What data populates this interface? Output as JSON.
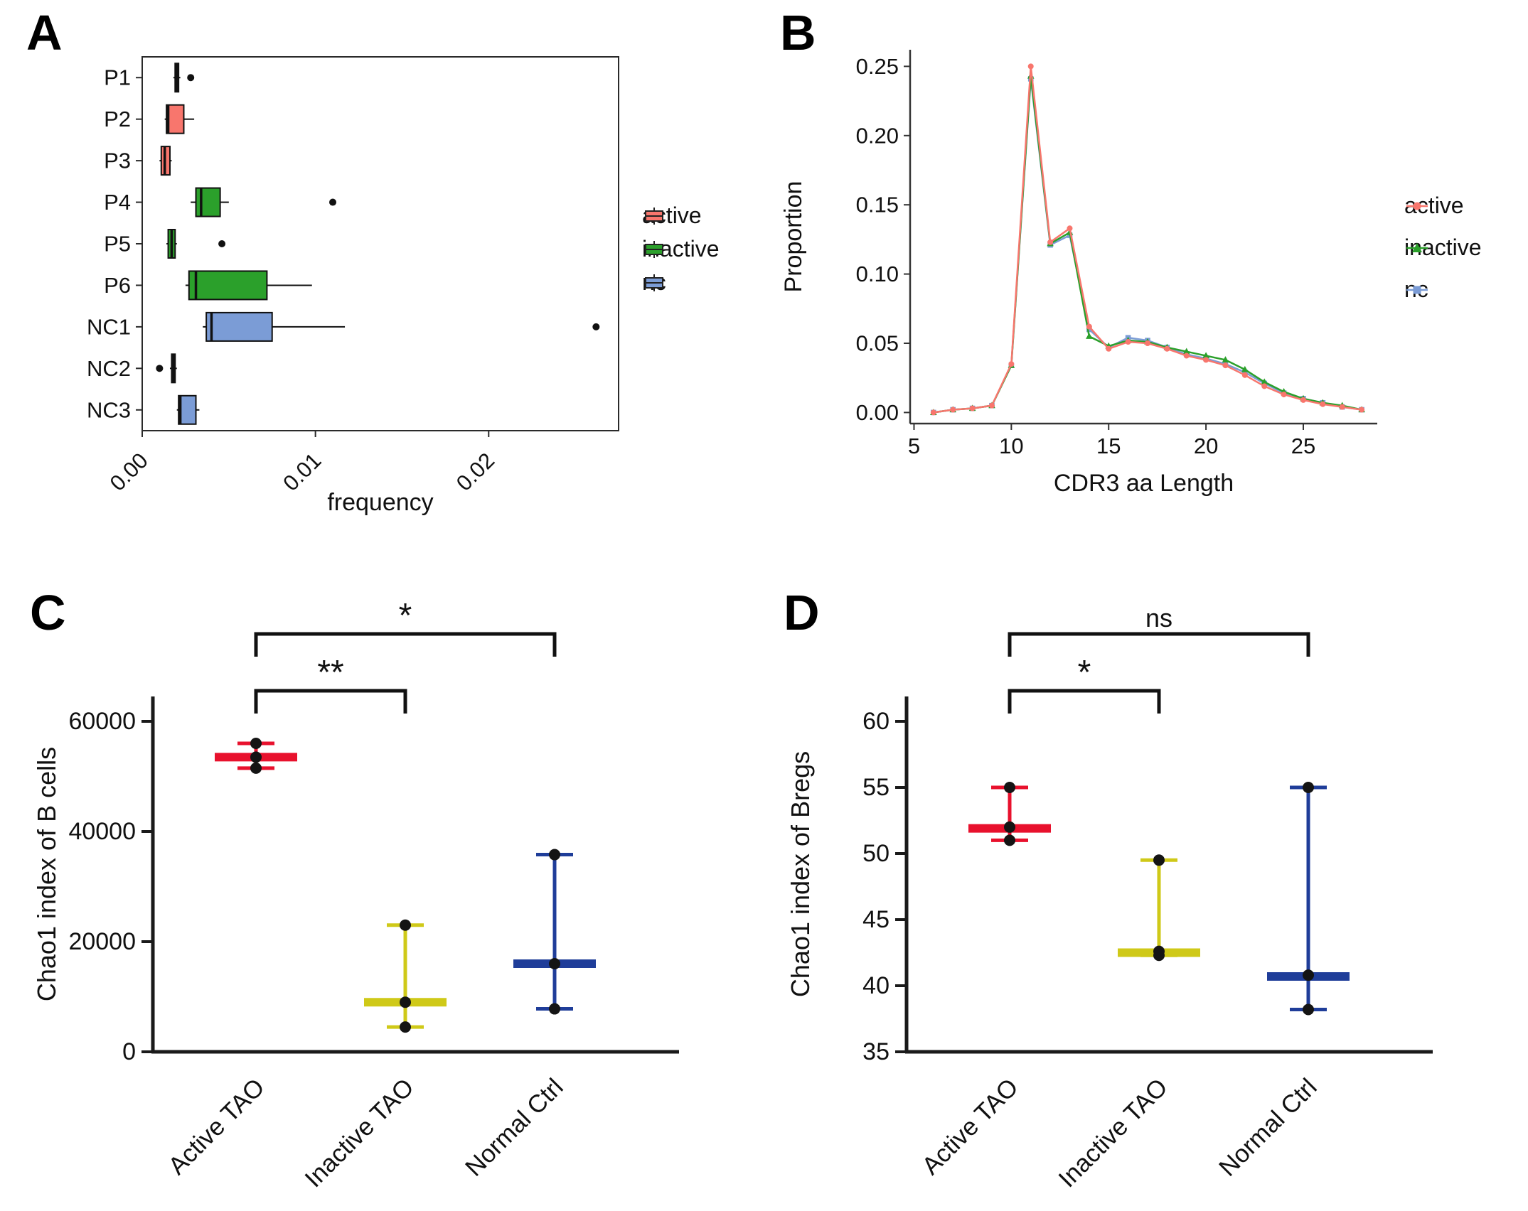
{
  "panels": {
    "A": {
      "letter": "A"
    },
    "B": {
      "letter": "B"
    },
    "C": {
      "letter": "C"
    },
    "D": {
      "letter": "D"
    }
  },
  "colors": {
    "active": "#F8766D",
    "inactive": "#2BA02B",
    "nc": "#7B9CD6",
    "tao_red": "#E8112D",
    "tao_yellow": "#CFC918",
    "ctrl_blue": "#1F3D99",
    "point": "#141414",
    "axis": "#1a1a1a"
  },
  "chart_data": [
    {
      "id": "A",
      "type": "boxplot-horizontal",
      "xlabel": "frequency",
      "xticks": [
        0,
        0.01,
        0.02
      ],
      "xtick_labels": [
        "0.00",
        "0.01",
        "0.02"
      ],
      "xlim": [
        0,
        0.0275
      ],
      "categories": [
        "P1",
        "P2",
        "P3",
        "P4",
        "P5",
        "P6",
        "NC1",
        "NC2",
        "NC3"
      ],
      "groups": [
        "active",
        "active",
        "active",
        "inactive",
        "inactive",
        "inactive",
        "nc",
        "nc",
        "nc"
      ],
      "boxes": [
        {
          "min": 0.0018,
          "q1": 0.0019,
          "median": 0.002,
          "q3": 0.0021,
          "max": 0.0022,
          "outliers": [
            0.0028
          ]
        },
        {
          "min": 0.0013,
          "q1": 0.0014,
          "median": 0.0015,
          "q3": 0.0024,
          "max": 0.003,
          "outliers": []
        },
        {
          "min": 0.001,
          "q1": 0.0011,
          "median": 0.0013,
          "q3": 0.0016,
          "max": 0.0017,
          "outliers": []
        },
        {
          "min": 0.0028,
          "q1": 0.0031,
          "median": 0.0034,
          "q3": 0.0045,
          "max": 0.005,
          "outliers": [
            0.011
          ]
        },
        {
          "min": 0.0014,
          "q1": 0.0015,
          "median": 0.0017,
          "q3": 0.0019,
          "max": 0.002,
          "outliers": [
            0.0046
          ]
        },
        {
          "min": 0.0025,
          "q1": 0.0027,
          "median": 0.0031,
          "q3": 0.0072,
          "max": 0.0098,
          "outliers": []
        },
        {
          "min": 0.0035,
          "q1": 0.0037,
          "median": 0.004,
          "q3": 0.0075,
          "max": 0.0117,
          "outliers": [
            0.0262
          ]
        },
        {
          "min": 0.0016,
          "q1": 0.0017,
          "median": 0.0018,
          "q3": 0.0019,
          "max": 0.002,
          "outliers": [
            0.001
          ]
        },
        {
          "min": 0.002,
          "q1": 0.0021,
          "median": 0.0022,
          "q3": 0.0031,
          "max": 0.0033,
          "outliers": []
        }
      ],
      "legend": [
        {
          "label": "active",
          "color_key": "active"
        },
        {
          "label": "inactive",
          "color_key": "inactive"
        },
        {
          "label": "nc",
          "color_key": "nc"
        }
      ]
    },
    {
      "id": "B",
      "type": "line",
      "xlabel": "CDR3 aa Length",
      "ylabel": "Proportion",
      "xticks": [
        5,
        10,
        15,
        20,
        25
      ],
      "yticks": [
        0,
        0.05,
        0.1,
        0.15,
        0.2,
        0.25
      ],
      "ytick_labels": [
        "0.00",
        "0.05",
        "0.10",
        "0.15",
        "0.20",
        "0.25"
      ],
      "xlim": [
        4.8,
        28.8
      ],
      "ylim": [
        -0.008,
        0.262
      ],
      "x": [
        6,
        7,
        8,
        9,
        10,
        11,
        12,
        13,
        14,
        15,
        16,
        17,
        18,
        19,
        20,
        21,
        22,
        23,
        24,
        25,
        26,
        27,
        28
      ],
      "series": [
        {
          "name": "active",
          "marker": "circle",
          "color_key": "active",
          "values": [
            0.0,
            0.002,
            0.003,
            0.005,
            0.035,
            0.25,
            0.123,
            0.133,
            0.062,
            0.046,
            0.051,
            0.05,
            0.046,
            0.041,
            0.038,
            0.034,
            0.027,
            0.019,
            0.013,
            0.009,
            0.006,
            0.004,
            0.002
          ]
        },
        {
          "name": "inactive",
          "marker": "triangle",
          "color_key": "inactive",
          "values": [
            0.0,
            0.002,
            0.003,
            0.005,
            0.034,
            0.243,
            0.122,
            0.13,
            0.055,
            0.048,
            0.052,
            0.051,
            0.047,
            0.044,
            0.041,
            0.038,
            0.031,
            0.022,
            0.015,
            0.01,
            0.007,
            0.005,
            0.002
          ]
        },
        {
          "name": "nc",
          "marker": "square",
          "color_key": "nc",
          "values": [
            0.0,
            0.002,
            0.003,
            0.005,
            0.034,
            0.241,
            0.121,
            0.128,
            0.06,
            0.047,
            0.054,
            0.052,
            0.047,
            0.042,
            0.039,
            0.035,
            0.029,
            0.021,
            0.014,
            0.01,
            0.007,
            0.004,
            0.002
          ]
        }
      ],
      "legend": [
        {
          "label": "active",
          "color_key": "active",
          "marker": "circle"
        },
        {
          "label": "inactive",
          "color_key": "inactive",
          "marker": "triangle"
        },
        {
          "label": "nc",
          "color_key": "nc",
          "marker": "square"
        }
      ]
    },
    {
      "id": "C",
      "type": "minmax",
      "ylabel": "Chao1  index of B cells",
      "yticks": [
        0,
        20000,
        40000,
        60000
      ],
      "ytick_labels": [
        "0",
        "20000",
        "40000",
        "60000"
      ],
      "ylim": [
        0,
        60000
      ],
      "groups": [
        {
          "label": "Active TAO",
          "color_key": "tao_red",
          "points": [
            51500,
            53500,
            56000
          ],
          "median": 53500,
          "min": 51500,
          "max": 56000
        },
        {
          "label": "Inactive TAO",
          "color_key": "tao_yellow",
          "points": [
            4500,
            9000,
            23000
          ],
          "median": 9000,
          "min": 4500,
          "max": 23000
        },
        {
          "label": "Normal Ctrl",
          "color_key": "ctrl_blue",
          "points": [
            7800,
            16000,
            35800
          ],
          "median": 16000,
          "min": 7800,
          "max": 35800
        }
      ],
      "comparisons": [
        {
          "from": 0,
          "to": 1,
          "label": "**",
          "level": 1
        },
        {
          "from": 0,
          "to": 2,
          "label": "*",
          "level": 2
        }
      ]
    },
    {
      "id": "D",
      "type": "minmax",
      "ylabel": "Chao1  index of Bregs",
      "yticks": [
        35,
        40,
        45,
        50,
        55,
        60
      ],
      "ytick_labels": [
        "35",
        "40",
        "45",
        "50",
        "55",
        "60"
      ],
      "ylim": [
        35,
        60
      ],
      "groups": [
        {
          "label": "Active TAO",
          "color_key": "tao_red",
          "points": [
            51.0,
            52.0,
            55.0
          ],
          "median": 51.9,
          "min": 51.0,
          "max": 55.0
        },
        {
          "label": "Inactive TAO",
          "color_key": "tao_yellow",
          "points": [
            42.3,
            42.6,
            49.5
          ],
          "median": 42.5,
          "min": 42.3,
          "max": 49.5
        },
        {
          "label": "Normal Ctrl",
          "color_key": "ctrl_blue",
          "points": [
            38.2,
            40.8,
            55.0
          ],
          "median": 40.7,
          "min": 38.2,
          "max": 55.0
        }
      ],
      "comparisons": [
        {
          "from": 0,
          "to": 1,
          "label": "*",
          "level": 1
        },
        {
          "from": 0,
          "to": 2,
          "label": "ns",
          "level": 2
        }
      ]
    }
  ]
}
